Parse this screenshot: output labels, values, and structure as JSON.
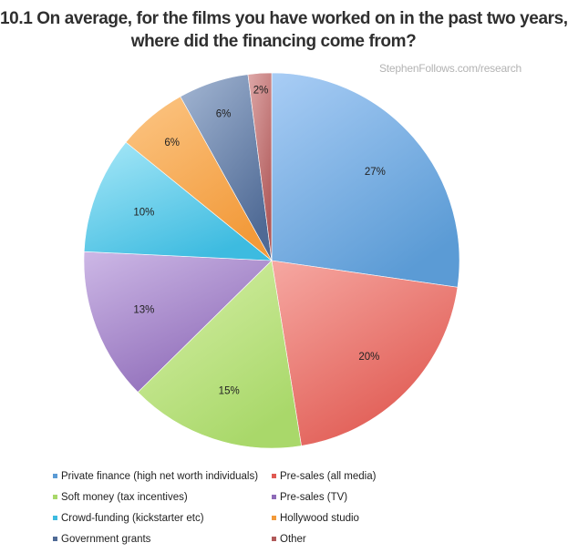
{
  "title_lines": [
    "10.1 On average, for the films you have worked on in the past two years,",
    "where did the financing come from?"
  ],
  "source": "StephenFollows.com/research",
  "chart_data": {
    "type": "pie",
    "title": "10.1 On average, for the films you have worked on in the past two years, where did the financing come from?",
    "start": "12 o'clock",
    "direction": "clockwise",
    "legend_position": "bottom",
    "slices": [
      {
        "label": "Private finance (high net worth individuals)",
        "value": 27,
        "display": "27%",
        "color": "#5b9bd5",
        "light": "#a9cdf5"
      },
      {
        "label": "Pre-sales (all media)",
        "value": 20,
        "display": "20%",
        "color": "#e05a52",
        "light": "#f6a8a2"
      },
      {
        "label": "Soft money (tax incentives)",
        "value": 15,
        "display": "15%",
        "color": "#a9d86a",
        "light": "#d7f0a8"
      },
      {
        "label": "Pre-sales (TV)",
        "value": 13,
        "display": "13%",
        "color": "#8e6bb8",
        "light": "#cdb8e6"
      },
      {
        "label": "Crowd-funding (kickstarter etc)",
        "value": 10,
        "display": "10%",
        "color": "#3dbbe0",
        "light": "#a8e8f8"
      },
      {
        "label": "Hollywood studio",
        "value": 6,
        "display": "6%",
        "color": "#f29a3a",
        "light": "#fcc685"
      },
      {
        "label": "Government grants",
        "value": 6,
        "display": "6%",
        "color": "#4f6a95",
        "light": "#a3b6d3"
      },
      {
        "label": "Other",
        "value": 2,
        "display": "2%",
        "color": "#b05a5a",
        "light": "#dea8a8"
      }
    ]
  }
}
